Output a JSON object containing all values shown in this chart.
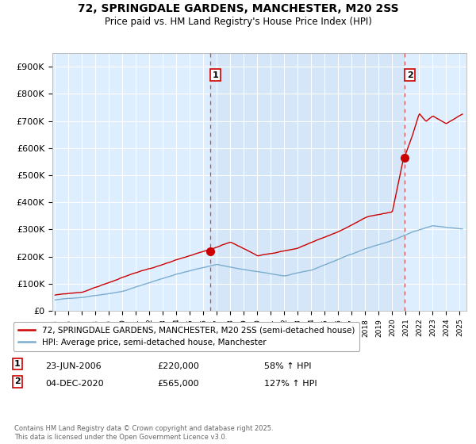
{
  "title": "72, SPRINGDALE GARDENS, MANCHESTER, M20 2SS",
  "subtitle": "Price paid vs. HM Land Registry's House Price Index (HPI)",
  "ylim": [
    0,
    950000
  ],
  "yticks": [
    0,
    100000,
    200000,
    300000,
    400000,
    500000,
    600000,
    700000,
    800000,
    900000
  ],
  "ytick_labels": [
    "£0",
    "£100K",
    "£200K",
    "£300K",
    "£400K",
    "£500K",
    "£600K",
    "£700K",
    "£800K",
    "£900K"
  ],
  "background_color": "#ffffff",
  "plot_bg_color": "#ddeeff",
  "grid_color": "#cccccc",
  "sale1_date": "23-JUN-2006",
  "sale1_price": 220000,
  "sale1_label": "58% ↑ HPI",
  "sale2_date": "04-DEC-2020",
  "sale2_price": 565000,
  "sale2_label": "127% ↑ HPI",
  "legend_line1": "72, SPRINGDALE GARDENS, MANCHESTER, M20 2SS (semi-detached house)",
  "legend_line2": "HPI: Average price, semi-detached house, Manchester",
  "footer": "Contains HM Land Registry data © Crown copyright and database right 2025.\nThis data is licensed under the Open Government Licence v3.0.",
  "red_color": "#cc0000",
  "blue_color": "#7aadcf",
  "shade_color": "#cce0f0",
  "sale1_x": 2006.5,
  "sale2_x": 2020.92,
  "xmin": 1994.8,
  "xmax": 2025.5
}
